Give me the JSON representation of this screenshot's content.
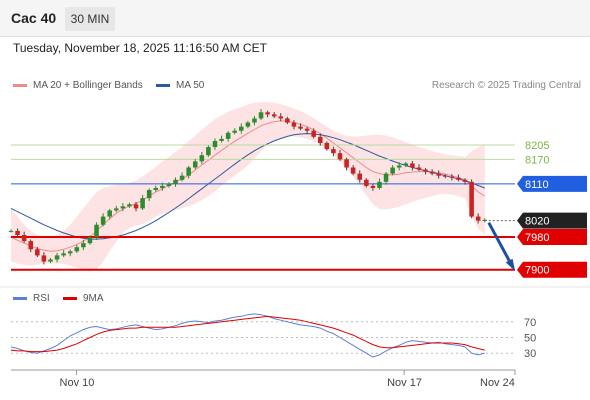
{
  "header": {
    "instrument": "Cac 40",
    "timeframe": "30 MIN",
    "timestamp": "Tuesday, November 18, 2025 11:16:50 AM CET"
  },
  "legend": {
    "bollinger": {
      "label": "MA 20 + Bollinger Bands",
      "color": "#f08a8a"
    },
    "ma50": {
      "label": "MA 50",
      "color": "#2c5aa0"
    },
    "credit": "Research © 2025 Trading Central"
  },
  "rsi_legend": {
    "rsi": {
      "label": "RSI",
      "color": "#5b7fd6"
    },
    "ma9": {
      "label": "9MA",
      "color": "#e00000"
    }
  },
  "colors": {
    "up": "#2e8b2e",
    "down": "#cc2222",
    "bb_fill": "#fde0e0",
    "level_green": "#7ab648",
    "level_blue": "#1f5fe0",
    "level_red": "#e00000",
    "level_current": "#222222",
    "arrow": "#1f4fa0"
  },
  "chart_data": [
    {
      "type": "candlestick",
      "title": "",
      "y_range": [
        7870,
        8320
      ],
      "x_range": [
        0,
        100
      ],
      "x_tick_labels": [
        {
          "label": "Nov 10",
          "x": 13
        },
        {
          "label": "Nov 17",
          "x": 78
        },
        {
          "label": "Nov 24",
          "x": 100
        }
      ],
      "levels": [
        {
          "value": 8205,
          "label": "8205",
          "kind": "green"
        },
        {
          "value": 8170,
          "label": "8170",
          "kind": "green"
        },
        {
          "value": 8110,
          "label": "8110",
          "kind": "blue"
        },
        {
          "value": 8020,
          "label": "8020",
          "kind": "current"
        },
        {
          "value": 7980,
          "label": "7980",
          "kind": "red"
        },
        {
          "value": 7900,
          "label": "7900",
          "kind": "red"
        }
      ],
      "projection": {
        "from": [
          94,
          8015
        ],
        "to": [
          100,
          7905
        ]
      },
      "close_series": [
        7995,
        7985,
        7970,
        7950,
        7935,
        7920,
        7925,
        7935,
        7940,
        7945,
        7955,
        7965,
        7980,
        8010,
        8030,
        8045,
        8050,
        8055,
        8060,
        8050,
        8075,
        8095,
        8100,
        8105,
        8110,
        8120,
        8130,
        8150,
        8165,
        8180,
        8200,
        8215,
        8220,
        8235,
        8240,
        8250,
        8260,
        8270,
        8285,
        8280,
        8275,
        8270,
        8260,
        8250,
        8245,
        8240,
        8225,
        8210,
        8195,
        8185,
        8170,
        8150,
        8135,
        8120,
        8105,
        8100,
        8115,
        8135,
        8150,
        8155,
        8160,
        8150,
        8145,
        8140,
        8135,
        8130,
        8128,
        8125,
        8120,
        8115,
        8030,
        8020,
        8022
      ],
      "ma20": [
        7980,
        7972,
        7965,
        7958,
        7952,
        7948,
        7945,
        7946,
        7950,
        7955,
        7962,
        7970,
        7980,
        7995,
        8010,
        8025,
        8038,
        8048,
        8056,
        8062,
        8070,
        8080,
        8090,
        8098,
        8106,
        8114,
        8122,
        8132,
        8144,
        8156,
        8168,
        8180,
        8192,
        8203,
        8214,
        8224,
        8234,
        8243,
        8252,
        8258,
        8262,
        8264,
        8263,
        8260,
        8256,
        8250,
        8242,
        8233,
        8222,
        8210,
        8198,
        8186,
        8174,
        8162,
        8150,
        8140,
        8135,
        8132,
        8132,
        8134,
        8137,
        8139,
        8140,
        8140,
        8139,
        8137,
        8134,
        8130,
        8126,
        8120,
        8105,
        8090,
        8080
      ],
      "bb_upper": [
        8050,
        8030,
        8010,
        7995,
        7985,
        7980,
        7980,
        7985,
        7995,
        8010,
        8030,
        8050,
        8070,
        8090,
        8100,
        8105,
        8108,
        8110,
        8112,
        8118,
        8128,
        8140,
        8152,
        8164,
        8176,
        8188,
        8200,
        8214,
        8228,
        8242,
        8256,
        8268,
        8278,
        8286,
        8292,
        8298,
        8304,
        8308,
        8310,
        8310,
        8308,
        8305,
        8300,
        8294,
        8288,
        8280,
        8270,
        8260,
        8250,
        8240,
        8232,
        8228,
        8226,
        8226,
        8228,
        8230,
        8230,
        8228,
        8224,
        8218,
        8212,
        8206,
        8200,
        8196,
        8190,
        8186,
        8182,
        8180,
        8178,
        8175,
        8190,
        8200,
        8205
      ],
      "bb_lower": [
        7920,
        7915,
        7912,
        7910,
        7912,
        7915,
        7915,
        7915,
        7915,
        7910,
        7905,
        7900,
        7895,
        7900,
        7920,
        7945,
        7968,
        7990,
        8002,
        8008,
        8012,
        8020,
        8030,
        8036,
        8040,
        8045,
        8050,
        8055,
        8062,
        8070,
        8080,
        8092,
        8106,
        8118,
        8130,
        8142,
        8156,
        8172,
        8190,
        8205,
        8215,
        8222,
        8226,
        8226,
        8224,
        8220,
        8214,
        8206,
        8196,
        8182,
        8166,
        8148,
        8128,
        8106,
        8082,
        8060,
        8048,
        8048,
        8050,
        8054,
        8060,
        8066,
        8072,
        8076,
        8080,
        8084,
        8086,
        8084,
        8080,
        8074,
        8030,
        8000,
        7985
      ],
      "ma50": [
        8050,
        8042,
        8034,
        8026,
        8018,
        8010,
        8003,
        7996,
        7990,
        7985,
        7980,
        7977,
        7975,
        7975,
        7976,
        7978,
        7981,
        7985,
        7990,
        7996,
        8003,
        8011,
        8020,
        8030,
        8040,
        8051,
        8062,
        8074,
        8086,
        8098,
        8110,
        8122,
        8134,
        8146,
        8158,
        8170,
        8181,
        8191,
        8200,
        8208,
        8215,
        8221,
        8226,
        8230,
        8232,
        8233,
        8232,
        8230,
        8227,
        8223,
        8218,
        8212,
        8206,
        8199,
        8192,
        8185,
        8178,
        8172,
        8166,
        8160,
        8155,
        8150,
        8146,
        8142,
        8138,
        8134,
        8130,
        8126,
        8122,
        8118,
        8112,
        8106,
        8100
      ]
    },
    {
      "type": "line",
      "title": "RSI",
      "y_range": [
        15,
        85
      ],
      "y_ticks": [
        70,
        50,
        30
      ],
      "rsi": [
        38,
        36,
        33,
        31,
        30,
        33,
        36,
        40,
        46,
        52,
        56,
        60,
        63,
        64,
        62,
        60,
        61,
        63,
        65,
        66,
        64,
        62,
        60,
        61,
        63,
        65,
        68,
        70,
        71,
        70,
        69,
        71,
        72,
        74,
        76,
        77,
        79,
        80,
        79,
        77,
        74,
        72,
        70,
        68,
        66,
        65,
        64,
        62,
        58,
        55,
        50,
        45,
        40,
        35,
        30,
        25,
        28,
        33,
        37,
        40,
        44,
        46,
        45,
        44,
        43,
        44,
        42,
        41,
        40,
        38,
        30,
        28,
        30
      ],
      "ma9": [
        34,
        33,
        33,
        32,
        32,
        32,
        33,
        34,
        36,
        39,
        42,
        46,
        50,
        54,
        57,
        59,
        60,
        61,
        62,
        62,
        63,
        63,
        63,
        63,
        63,
        63,
        64,
        65,
        66,
        67,
        68,
        69,
        70,
        71,
        72,
        73,
        74,
        75,
        76,
        77,
        76,
        75,
        74,
        73,
        72,
        70,
        68,
        66,
        64,
        62,
        59,
        56,
        53,
        49,
        45,
        41,
        38,
        37,
        37,
        38,
        39,
        40,
        41,
        42,
        43,
        43,
        43,
        43,
        42,
        41,
        38,
        36,
        34
      ]
    }
  ]
}
